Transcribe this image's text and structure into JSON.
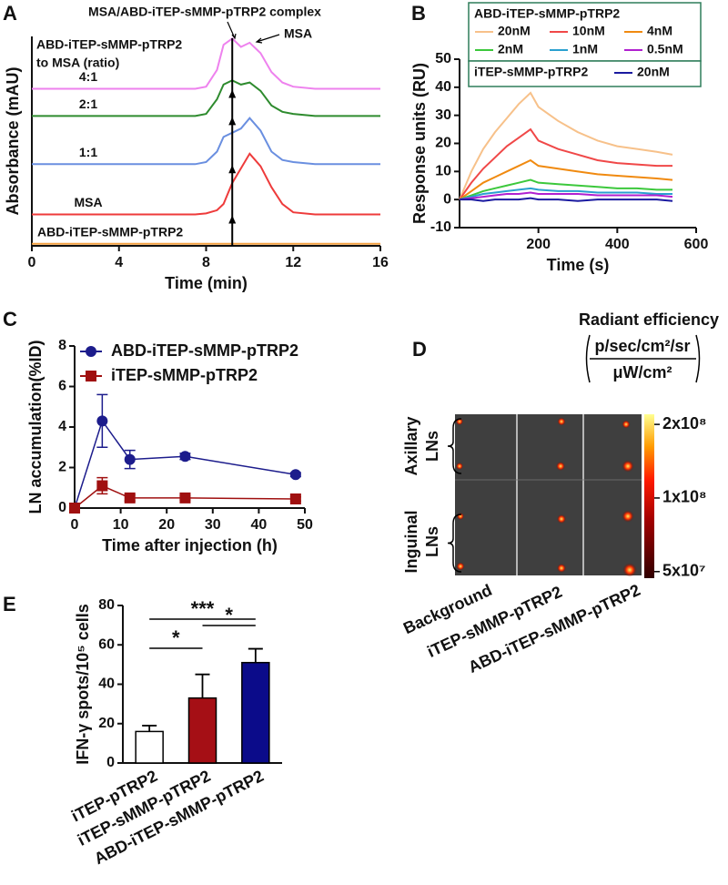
{
  "chart_data": [
    {
      "label": "A",
      "type": "line",
      "xlabel": "Time (min)",
      "ylabel": "Absorbance (mAU)",
      "xlim": [
        0,
        16
      ],
      "xticks": [
        0,
        4,
        8,
        12,
        16
      ],
      "ylim": [
        0,
        100
      ],
      "x": [
        0,
        7.5,
        8,
        8.5,
        8.8,
        9.2,
        9.6,
        10,
        10.5,
        11,
        11.5,
        12,
        13,
        16
      ],
      "series": [
        {
          "name": "4:1",
          "color": "#ee82ee",
          "values": [
            75,
            75,
            76,
            84,
            96,
            99,
            95,
            97,
            92,
            83,
            78,
            76,
            75,
            75
          ]
        },
        {
          "name": "2:1",
          "color": "#2e8b2e",
          "values": [
            62,
            62,
            63,
            70,
            77,
            79,
            77,
            78,
            74,
            67,
            64,
            63,
            62,
            62
          ]
        },
        {
          "name": "1:1",
          "color": "#6a8fe0",
          "values": [
            39,
            39,
            40,
            45,
            52,
            54,
            56,
            61,
            55,
            45,
            41,
            40,
            39,
            39
          ]
        },
        {
          "name": "MSA",
          "color": "#ee3b3b",
          "values": [
            15,
            15,
            15.5,
            17,
            20,
            30,
            37,
            44,
            38,
            28,
            20,
            16,
            15,
            15
          ]
        },
        {
          "name": "ABD-iTEP-sMMP-pTRP2",
          "color": "#f4a040",
          "values": [
            1,
            1,
            1,
            1,
            1,
            1,
            1,
            1,
            1,
            1,
            1,
            1,
            1,
            1
          ]
        }
      ],
      "reference_x": 9.2,
      "annotations": [
        "MSA/ABD-iTEP-sMMP-pTRP2 complex",
        "MSA"
      ],
      "legend_title": [
        "ABD-iTEP-sMMP-pTRP2",
        "to MSA (ratio)"
      ]
    },
    {
      "label": "B",
      "type": "line",
      "xlabel": "Time (s)",
      "ylabel": "Response units (RU)",
      "xlim": [
        0,
        600
      ],
      "xticks": [
        200,
        400,
        600
      ],
      "ylim": [
        -10,
        50
      ],
      "yticks": [
        -10,
        0,
        10,
        20,
        30,
        40,
        50
      ],
      "x": [
        0,
        30,
        60,
        90,
        120,
        150,
        180,
        200,
        250,
        300,
        350,
        400,
        450,
        500,
        540
      ],
      "groups": [
        {
          "name": "ABD-iTEP-sMMP-pTRP2",
          "series": [
            {
              "name": "20nM",
              "color": "#f7c18a",
              "values": [
                0,
                10,
                18,
                24,
                29,
                34,
                38,
                33,
                28,
                24,
                21,
                19,
                18,
                17,
                16
              ]
            },
            {
              "name": "10nM",
              "color": "#f04848",
              "values": [
                0,
                6,
                11,
                15,
                19,
                22,
                25,
                21,
                18,
                16,
                14,
                13,
                12.5,
                12,
                12
              ]
            },
            {
              "name": "4nM",
              "color": "#f08a10",
              "values": [
                0,
                3,
                6,
                8,
                10,
                12,
                14,
                12,
                11,
                10,
                9,
                8.5,
                8,
                7.5,
                7
              ]
            },
            {
              "name": "2nM",
              "color": "#3cc83c",
              "values": [
                0,
                1.5,
                3,
                4,
                5,
                6,
                7,
                6,
                5.5,
                5,
                4.5,
                4,
                4,
                3.5,
                3.5
              ]
            },
            {
              "name": "1nM",
              "color": "#2aa0d0",
              "values": [
                0,
                1,
                2,
                2.5,
                3,
                3.5,
                4,
                3.5,
                3,
                3,
                2.5,
                2.5,
                2.5,
                2,
                2
              ]
            },
            {
              "name": "0.5nM",
              "color": "#b020d0",
              "values": [
                0,
                0.5,
                1,
                1.5,
                2,
                2,
                2.5,
                2,
                2,
                2,
                1.5,
                1.5,
                1.5,
                1.5,
                1
              ]
            }
          ]
        },
        {
          "name": "iTEP-sMMP-pTRP2",
          "series": [
            {
              "name": "20nM",
              "color": "#1a1aa0",
              "values": [
                0,
                0,
                -0.5,
                0,
                0,
                0,
                0.5,
                0,
                0,
                -0.5,
                0,
                0,
                0,
                0,
                -0.5
              ]
            }
          ]
        }
      ]
    },
    {
      "label": "C",
      "type": "line",
      "xlabel": "Time after injection (h)",
      "ylabel": "LN accumulation(%ID)",
      "xlim": [
        0,
        50
      ],
      "xticks": [
        0,
        10,
        20,
        30,
        40,
        50
      ],
      "ylim": [
        0,
        8
      ],
      "yticks": [
        0,
        2,
        4,
        6,
        8
      ],
      "x": [
        0,
        6,
        12,
        24,
        48
      ],
      "legend": "upper left",
      "series": [
        {
          "name": "ABD-iTEP-sMMP-pTRP2",
          "color": "#1c1c8c",
          "marker": "circle",
          "values": [
            0,
            4.3,
            2.4,
            2.55,
            1.65
          ],
          "errors": [
            0,
            1.3,
            0.45,
            0.15,
            0.1
          ]
        },
        {
          "name": "iTEP-sMMP-pTRP2",
          "color": "#a01010",
          "marker": "square",
          "values": [
            0,
            1.1,
            0.5,
            0.5,
            0.45
          ],
          "errors": [
            0,
            0.4,
            0.15,
            0.1,
            0.1
          ]
        }
      ]
    },
    {
      "label": "E",
      "type": "bar",
      "ylabel": "IFN-γ spots/10⁵ cells",
      "categories": [
        "iTEP-pTRP2",
        "iTEP-sMMP-pTRP2",
        "ABD-iTEP-sMMP-pTRP2"
      ],
      "values": [
        16,
        33,
        51
      ],
      "errors": [
        3,
        12,
        7
      ],
      "colors": [
        "#ffffff",
        "#a50f15",
        "#0b0b8a"
      ],
      "ylim": [
        0,
        80
      ],
      "yticks": [
        0,
        20,
        40,
        60,
        80
      ],
      "significance": [
        "***",
        "*",
        "*"
      ]
    }
  ],
  "image_panel": {
    "label": "D",
    "title": "Radiant efficiency",
    "unit_numerator": "p/sec/cm²/sr",
    "unit_denominator": "μW/cm²",
    "rows": [
      [
        "Axillary",
        "LNs"
      ],
      [
        "Inguinal",
        "LNs"
      ]
    ],
    "columns": [
      "Background",
      "iTEP-sMMP-pTRP2",
      "ABD-iTEP-sMMP-pTRP2"
    ],
    "colorbar": {
      "log": true,
      "lim": [
        47000000,
        220000000
      ],
      "ticks": [
        {
          "value": 200000000,
          "label": "2x10⁸"
        },
        {
          "value": 100000000,
          "label": "1x10⁸"
        },
        {
          "value": 50000000,
          "label": "5x10⁷"
        }
      ]
    }
  }
}
